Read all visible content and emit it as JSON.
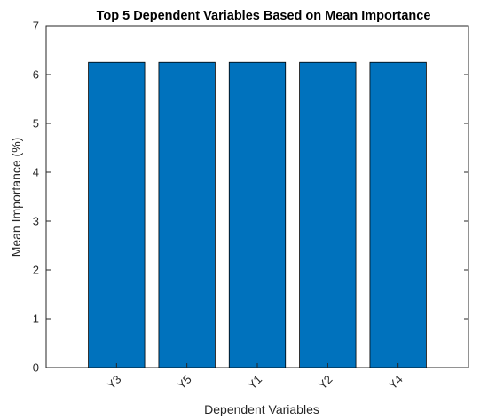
{
  "chart_data": {
    "type": "bar",
    "title": "Top 5 Dependent Variables Based on Mean Importance",
    "xlabel": "Dependent Variables",
    "ylabel": "Mean Importance (%)",
    "categories": [
      "Y3",
      "Y5",
      "Y1",
      "Y2",
      "Y4"
    ],
    "values": [
      6.25,
      6.25,
      6.25,
      6.25,
      6.25
    ],
    "ylim": [
      0,
      7
    ],
    "yticks": [
      0,
      1,
      2,
      3,
      4,
      5,
      6,
      7
    ],
    "grid": false,
    "legend": "none",
    "bar_color": "#0072BD",
    "bar_edge_color": "#000000"
  }
}
